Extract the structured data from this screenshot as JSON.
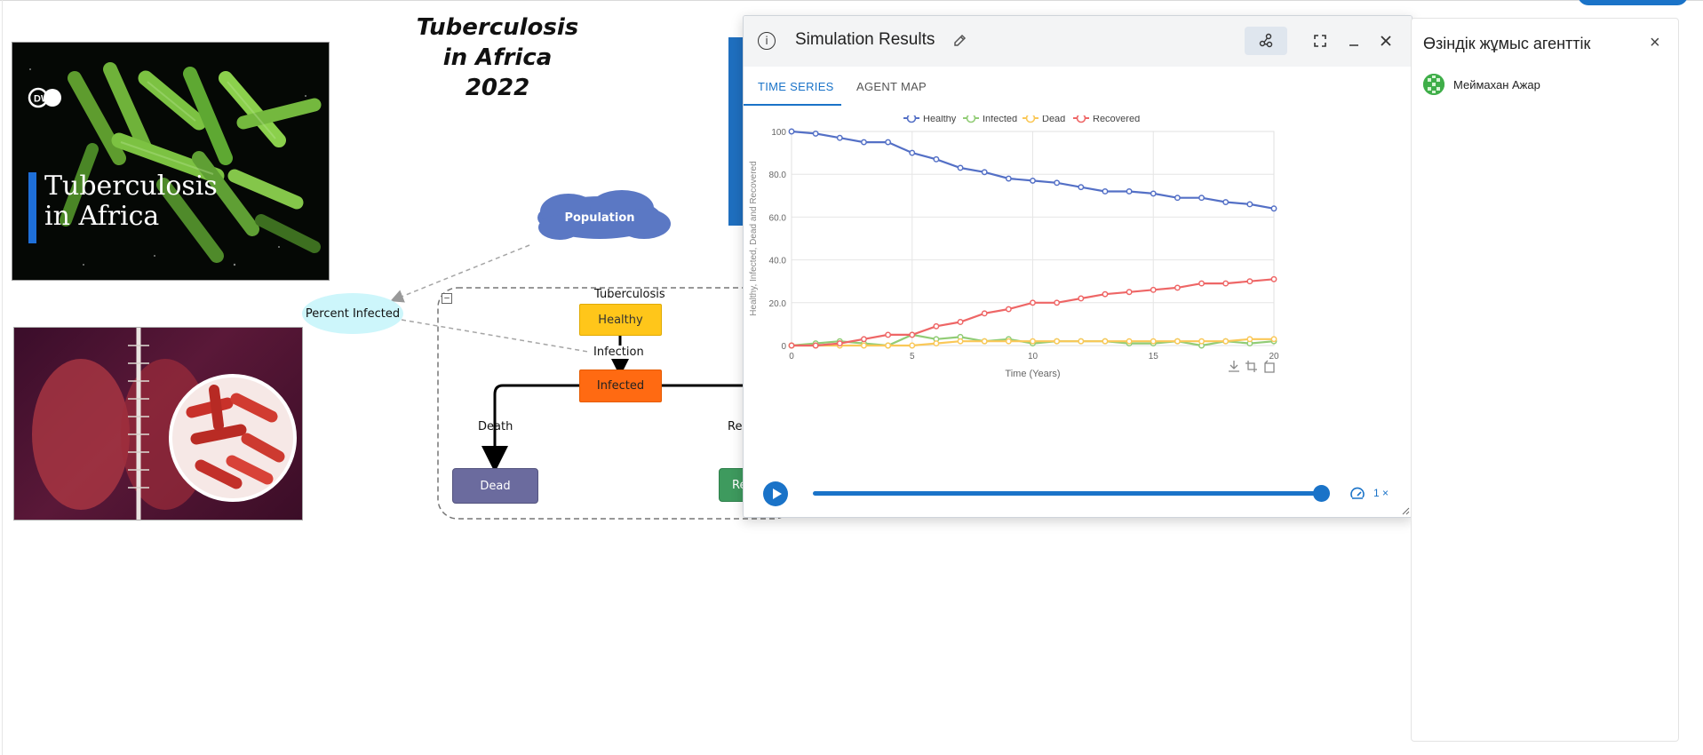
{
  "diagram": {
    "title_lines": [
      "Tuberculosis",
      "in Africa",
      "2022"
    ],
    "image1_title_lines": [
      "Tuberculosis",
      "in Africa"
    ],
    "image1_logo": "DW",
    "population_label": "Population",
    "percent_infected_label": "Percent Infected",
    "folder_label": "Tuberculosis",
    "collapse_symbol": "–",
    "stocks": {
      "healthy": "Healthy",
      "infected": "Infected",
      "dead": "Dead",
      "recovered": "Re"
    },
    "flows": {
      "infection": "Infection",
      "death": "Death",
      "recovery": "Re"
    }
  },
  "simulation": {
    "title": "Simulation Results",
    "info_symbol": "i",
    "tabs": [
      {
        "label": "TIME SERIES",
        "active": true
      },
      {
        "label": "AGENT MAP",
        "active": false
      }
    ],
    "player": {
      "speed_label": "1 ×",
      "progress": 1.0
    }
  },
  "chart_data": {
    "type": "line",
    "xlabel": "Time (Years)",
    "ylabel": "Healthy, Infected, Dead and Recovered",
    "xlim": [
      0,
      20
    ],
    "ylim": [
      0,
      100
    ],
    "x_ticks": [
      0,
      5,
      10,
      15,
      20
    ],
    "y_ticks": [
      "0",
      "20.0",
      "40.0",
      "60.0",
      "80.0",
      "100"
    ],
    "grid": true,
    "legend_position": "top",
    "x": [
      0,
      1,
      2,
      3,
      4,
      5,
      6,
      7,
      8,
      9,
      10,
      11,
      12,
      13,
      14,
      15,
      16,
      17,
      18,
      19,
      20
    ],
    "series": [
      {
        "name": "Healthy",
        "color": "#5470c6",
        "values": [
          100,
          99,
          97,
          95,
          95,
          90,
          87,
          83,
          81,
          78,
          77,
          76,
          74,
          72,
          72,
          71,
          69,
          69,
          67,
          66,
          64
        ]
      },
      {
        "name": "Infected",
        "color": "#91cc75",
        "values": [
          0,
          1,
          2,
          1,
          0,
          5,
          3,
          4,
          2,
          3,
          1,
          2,
          2,
          2,
          1,
          1,
          2,
          0,
          2,
          1,
          2
        ]
      },
      {
        "name": "Dead",
        "color": "#fac858",
        "values": [
          0,
          0,
          0,
          0,
          0,
          0,
          1,
          2,
          2,
          2,
          2,
          2,
          2,
          2,
          2,
          2,
          2,
          2,
          2,
          3,
          3
        ]
      },
      {
        "name": "Recovered",
        "color": "#ee6666",
        "values": [
          0,
          0,
          1,
          3,
          5,
          5,
          9,
          11,
          15,
          17,
          20,
          20,
          22,
          24,
          25,
          26,
          27,
          29,
          29,
          30,
          31
        ]
      }
    ]
  },
  "agent_panel": {
    "title": "Өзіндік жұмыс агенттік",
    "close_symbol": "×",
    "agents": [
      {
        "name": "Меймахан Ажар"
      }
    ]
  },
  "colors": {
    "accent": "#1a73c8",
    "healthy": "#ffc61a",
    "infected": "#ff6a12",
    "dead": "#6b6b9e",
    "recovered": "#3e9a5e"
  }
}
